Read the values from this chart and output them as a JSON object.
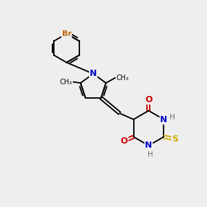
{
  "background_color": "#eeeeee",
  "bond_color": "#000000",
  "N_color": "#0000cc",
  "O_color": "#cc0000",
  "S_color": "#ccaa00",
  "Br_color": "#bb6600",
  "H_color": "#666666",
  "figsize": [
    3.0,
    3.0
  ],
  "dpi": 100,
  "xlim": [
    0,
    10
  ],
  "ylim": [
    0,
    10
  ]
}
